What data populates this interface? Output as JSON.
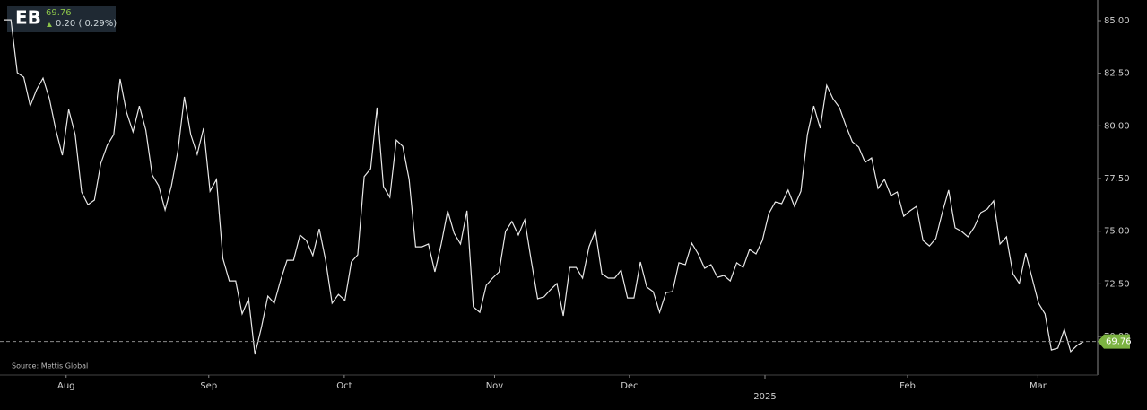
{
  "chart_data": {
    "type": "line",
    "symbol": "EB",
    "price": "69.76",
    "change": "0.20 ( 0.29%)",
    "source": "Source: Mettis Global",
    "last_price": 69.76,
    "last_price_label": "69.76",
    "series": [
      {
        "color": "#e8e8e8",
        "values": [
          85.04,
          85.04,
          82.53,
          82.31,
          80.95,
          81.72,
          82.27,
          81.29,
          79.8,
          78.61,
          80.78,
          79.59,
          76.86,
          76.26,
          76.48,
          78.22,
          79.08,
          79.59,
          82.23,
          80.65,
          79.72,
          80.95,
          79.8,
          77.67,
          77.16,
          76.01,
          77.16,
          78.82,
          81.38,
          79.59,
          78.65,
          79.89,
          76.9,
          77.46,
          73.71,
          72.64,
          72.64,
          71.07,
          71.79,
          69.15,
          70.43,
          71.92,
          71.58,
          72.69,
          73.62,
          73.62,
          74.82,
          74.56,
          73.84,
          75.11,
          73.62,
          71.58,
          72.0,
          71.71,
          73.54,
          73.88,
          77.59,
          77.97,
          80.87,
          77.12,
          76.61,
          79.33,
          79.03,
          77.46,
          74.26,
          74.26,
          74.39,
          73.07,
          74.39,
          75.97,
          74.9,
          74.39,
          75.97,
          71.41,
          71.15,
          72.43,
          72.77,
          73.07,
          74.99,
          75.46,
          74.82,
          75.54,
          73.62,
          71.79,
          71.88,
          72.22,
          72.52,
          70.98,
          73.28,
          73.28,
          72.77,
          74.26,
          75.03,
          72.98,
          72.77,
          72.77,
          73.15,
          71.83,
          71.83,
          73.54,
          72.35,
          72.13,
          71.15,
          72.09,
          72.13,
          73.5,
          73.41,
          74.43,
          73.92,
          73.24,
          73.41,
          72.81,
          72.9,
          72.64,
          73.5,
          73.28,
          74.13,
          73.92,
          74.56,
          75.84,
          76.39,
          76.31,
          76.95,
          76.18,
          76.9,
          79.59,
          80.95,
          79.89,
          81.93,
          81.29,
          80.87,
          80.01,
          79.25,
          78.99,
          78.27,
          78.48,
          77.03,
          77.46,
          76.69,
          76.86,
          75.71,
          75.97,
          76.18,
          74.56,
          74.3,
          74.65,
          75.88,
          76.95,
          75.16,
          74.99,
          74.73,
          75.2,
          75.88,
          76.05,
          76.44,
          74.39,
          74.73,
          72.98,
          72.52,
          73.96,
          72.77,
          71.58,
          71.07,
          69.36,
          69.45,
          70.34,
          69.28,
          69.58,
          69.76
        ]
      }
    ],
    "xlim": [
      -0.7,
      170.2
    ],
    "xticks": [
      {
        "value": 9.6,
        "label": "Aug"
      },
      {
        "value": 31.8,
        "label": "Sep"
      },
      {
        "value": 52.9,
        "label": "Oct"
      },
      {
        "value": 76.3,
        "label": "Nov"
      },
      {
        "value": 97.3,
        "label": "Dec"
      },
      {
        "value": 118.4,
        "label": "2025"
      },
      {
        "value": 140.6,
        "label": "Feb"
      },
      {
        "value": 160.9,
        "label": "Mar"
      }
    ],
    "ylim": [
      68.17,
      85.98
    ],
    "yticks": [
      {
        "value": 70,
        "label": "70.00"
      },
      {
        "value": 72.5,
        "label": "72.50"
      },
      {
        "value": 75,
        "label": "75.00"
      },
      {
        "value": 77.5,
        "label": "77.50"
      },
      {
        "value": 80,
        "label": "80.00"
      },
      {
        "value": 82.5,
        "label": "82.50"
      },
      {
        "value": 85,
        "label": "85.00"
      }
    ]
  }
}
